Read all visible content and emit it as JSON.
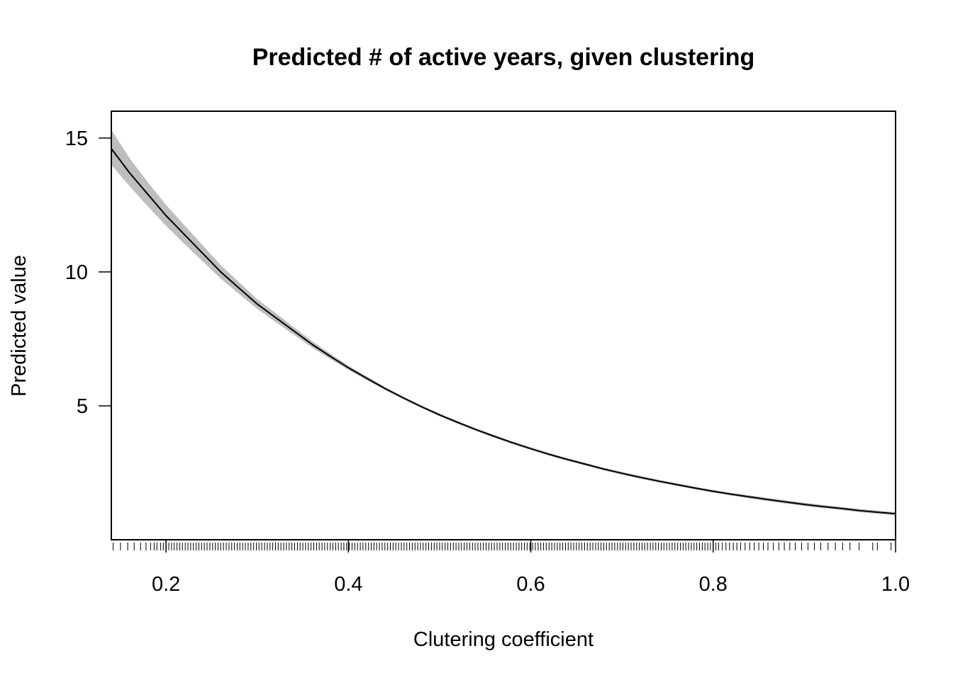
{
  "chart_data": {
    "type": "line",
    "title": "Predicted # of active years, given clustering",
    "xlabel": "Clutering coefficient",
    "ylabel": "Predicted value",
    "xlim": [
      0.14,
      1.0
    ],
    "ylim": [
      0.0,
      16.0
    ],
    "x_ticks": [
      0.2,
      0.4,
      0.6,
      0.8,
      1.0
    ],
    "x_tick_labels": [
      "0.2",
      "0.4",
      "0.6",
      "0.8",
      "1.0"
    ],
    "y_ticks": [
      5,
      10,
      15
    ],
    "y_tick_labels": [
      "5",
      "10",
      "15"
    ],
    "grid": false,
    "legend": "none",
    "series": [
      {
        "type": "line",
        "color": "#000000",
        "x": [
          0.14,
          0.16,
          0.18,
          0.2,
          0.22,
          0.24,
          0.26,
          0.28,
          0.3,
          0.32,
          0.34,
          0.36,
          0.38,
          0.4,
          0.42,
          0.44,
          0.46,
          0.48,
          0.5,
          0.52,
          0.54,
          0.56,
          0.58,
          0.6,
          0.62,
          0.64,
          0.66,
          0.68,
          0.7,
          0.72,
          0.74,
          0.76,
          0.78,
          0.8,
          0.82,
          0.84,
          0.86,
          0.88,
          0.9,
          0.92,
          0.94,
          0.96,
          0.98,
          1.0
        ],
        "y": [
          14.6,
          13.7,
          12.9,
          12.1,
          11.4,
          10.7,
          10.0,
          9.4,
          8.8,
          8.3,
          7.8,
          7.3,
          6.85,
          6.42,
          6.03,
          5.65,
          5.3,
          4.97,
          4.66,
          4.38,
          4.11,
          3.86,
          3.62,
          3.4,
          3.19,
          3.0,
          2.82,
          2.64,
          2.48,
          2.33,
          2.19,
          2.06,
          1.93,
          1.81,
          1.7,
          1.6,
          1.5,
          1.41,
          1.32,
          1.24,
          1.17,
          1.09,
          1.03,
          0.97
        ],
        "band_lower": [
          14.0,
          13.2,
          12.45,
          11.72,
          11.05,
          10.4,
          9.75,
          9.18,
          8.62,
          8.13,
          7.66,
          7.18,
          6.75,
          6.34,
          5.96,
          5.59,
          5.25,
          4.92,
          4.61,
          4.33,
          4.06,
          3.81,
          3.57,
          3.35,
          3.14,
          2.95,
          2.77,
          2.59,
          2.43,
          2.28,
          2.14,
          2.01,
          1.88,
          1.76,
          1.65,
          1.54,
          1.44,
          1.35,
          1.26,
          1.18,
          1.11,
          1.03,
          0.97,
          0.91
        ],
        "band_upper": [
          15.3,
          14.25,
          13.35,
          12.5,
          11.75,
          11.0,
          10.25,
          9.62,
          8.98,
          8.47,
          7.94,
          7.42,
          6.95,
          6.5,
          6.1,
          5.71,
          5.35,
          5.02,
          4.71,
          4.43,
          4.16,
          3.91,
          3.67,
          3.45,
          3.24,
          3.05,
          2.87,
          2.69,
          2.53,
          2.38,
          2.24,
          2.11,
          1.98,
          1.86,
          1.75,
          1.66,
          1.56,
          1.47,
          1.38,
          1.3,
          1.23,
          1.15,
          1.09,
          1.03
        ],
        "band_color": "#bebebe"
      }
    ],
    "rug_x": [
      0.142,
      0.15,
      0.158,
      0.165,
      0.172,
      0.178,
      0.183,
      0.187,
      0.19,
      0.194,
      0.197,
      0.2,
      0.203,
      0.206,
      0.209,
      0.212,
      0.215,
      0.218,
      0.221,
      0.224,
      0.227,
      0.23,
      0.233,
      0.236,
      0.239,
      0.242,
      0.245,
      0.248,
      0.251,
      0.254,
      0.257,
      0.26,
      0.263,
      0.266,
      0.269,
      0.272,
      0.275,
      0.278,
      0.281,
      0.284,
      0.287,
      0.29,
      0.293,
      0.296,
      0.299,
      0.302,
      0.305,
      0.308,
      0.311,
      0.314,
      0.317,
      0.32,
      0.323,
      0.326,
      0.329,
      0.332,
      0.335,
      0.338,
      0.341,
      0.344,
      0.347,
      0.35,
      0.353,
      0.356,
      0.359,
      0.362,
      0.365,
      0.368,
      0.371,
      0.374,
      0.377,
      0.38,
      0.383,
      0.386,
      0.389,
      0.392,
      0.395,
      0.398,
      0.401,
      0.404,
      0.407,
      0.41,
      0.413,
      0.416,
      0.419,
      0.422,
      0.425,
      0.428,
      0.431,
      0.434,
      0.437,
      0.44,
      0.443,
      0.446,
      0.449,
      0.452,
      0.455,
      0.458,
      0.461,
      0.464,
      0.467,
      0.47,
      0.473,
      0.476,
      0.479,
      0.482,
      0.485,
      0.488,
      0.491,
      0.494,
      0.497,
      0.5,
      0.503,
      0.506,
      0.509,
      0.512,
      0.515,
      0.518,
      0.521,
      0.524,
      0.527,
      0.53,
      0.533,
      0.536,
      0.539,
      0.542,
      0.545,
      0.548,
      0.551,
      0.554,
      0.557,
      0.56,
      0.563,
      0.566,
      0.569,
      0.572,
      0.575,
      0.578,
      0.581,
      0.584,
      0.587,
      0.59,
      0.593,
      0.596,
      0.599,
      0.602,
      0.605,
      0.608,
      0.611,
      0.614,
      0.617,
      0.62,
      0.623,
      0.626,
      0.629,
      0.632,
      0.635,
      0.638,
      0.641,
      0.644,
      0.647,
      0.65,
      0.653,
      0.656,
      0.659,
      0.662,
      0.665,
      0.668,
      0.671,
      0.674,
      0.677,
      0.68,
      0.683,
      0.686,
      0.689,
      0.692,
      0.695,
      0.698,
      0.701,
      0.704,
      0.707,
      0.71,
      0.713,
      0.716,
      0.719,
      0.722,
      0.725,
      0.728,
      0.731,
      0.734,
      0.737,
      0.74,
      0.743,
      0.746,
      0.749,
      0.752,
      0.755,
      0.758,
      0.761,
      0.764,
      0.767,
      0.77,
      0.773,
      0.776,
      0.779,
      0.782,
      0.785,
      0.788,
      0.791,
      0.794,
      0.797,
      0.8,
      0.803,
      0.806,
      0.81,
      0.814,
      0.818,
      0.822,
      0.826,
      0.83,
      0.835,
      0.84,
      0.845,
      0.85,
      0.855,
      0.86,
      0.866,
      0.872,
      0.878,
      0.884,
      0.89,
      0.897,
      0.904,
      0.911,
      0.918,
      0.926,
      0.934,
      0.942,
      0.95,
      0.96,
      0.975,
      0.98,
      0.995,
      1.0
    ]
  }
}
